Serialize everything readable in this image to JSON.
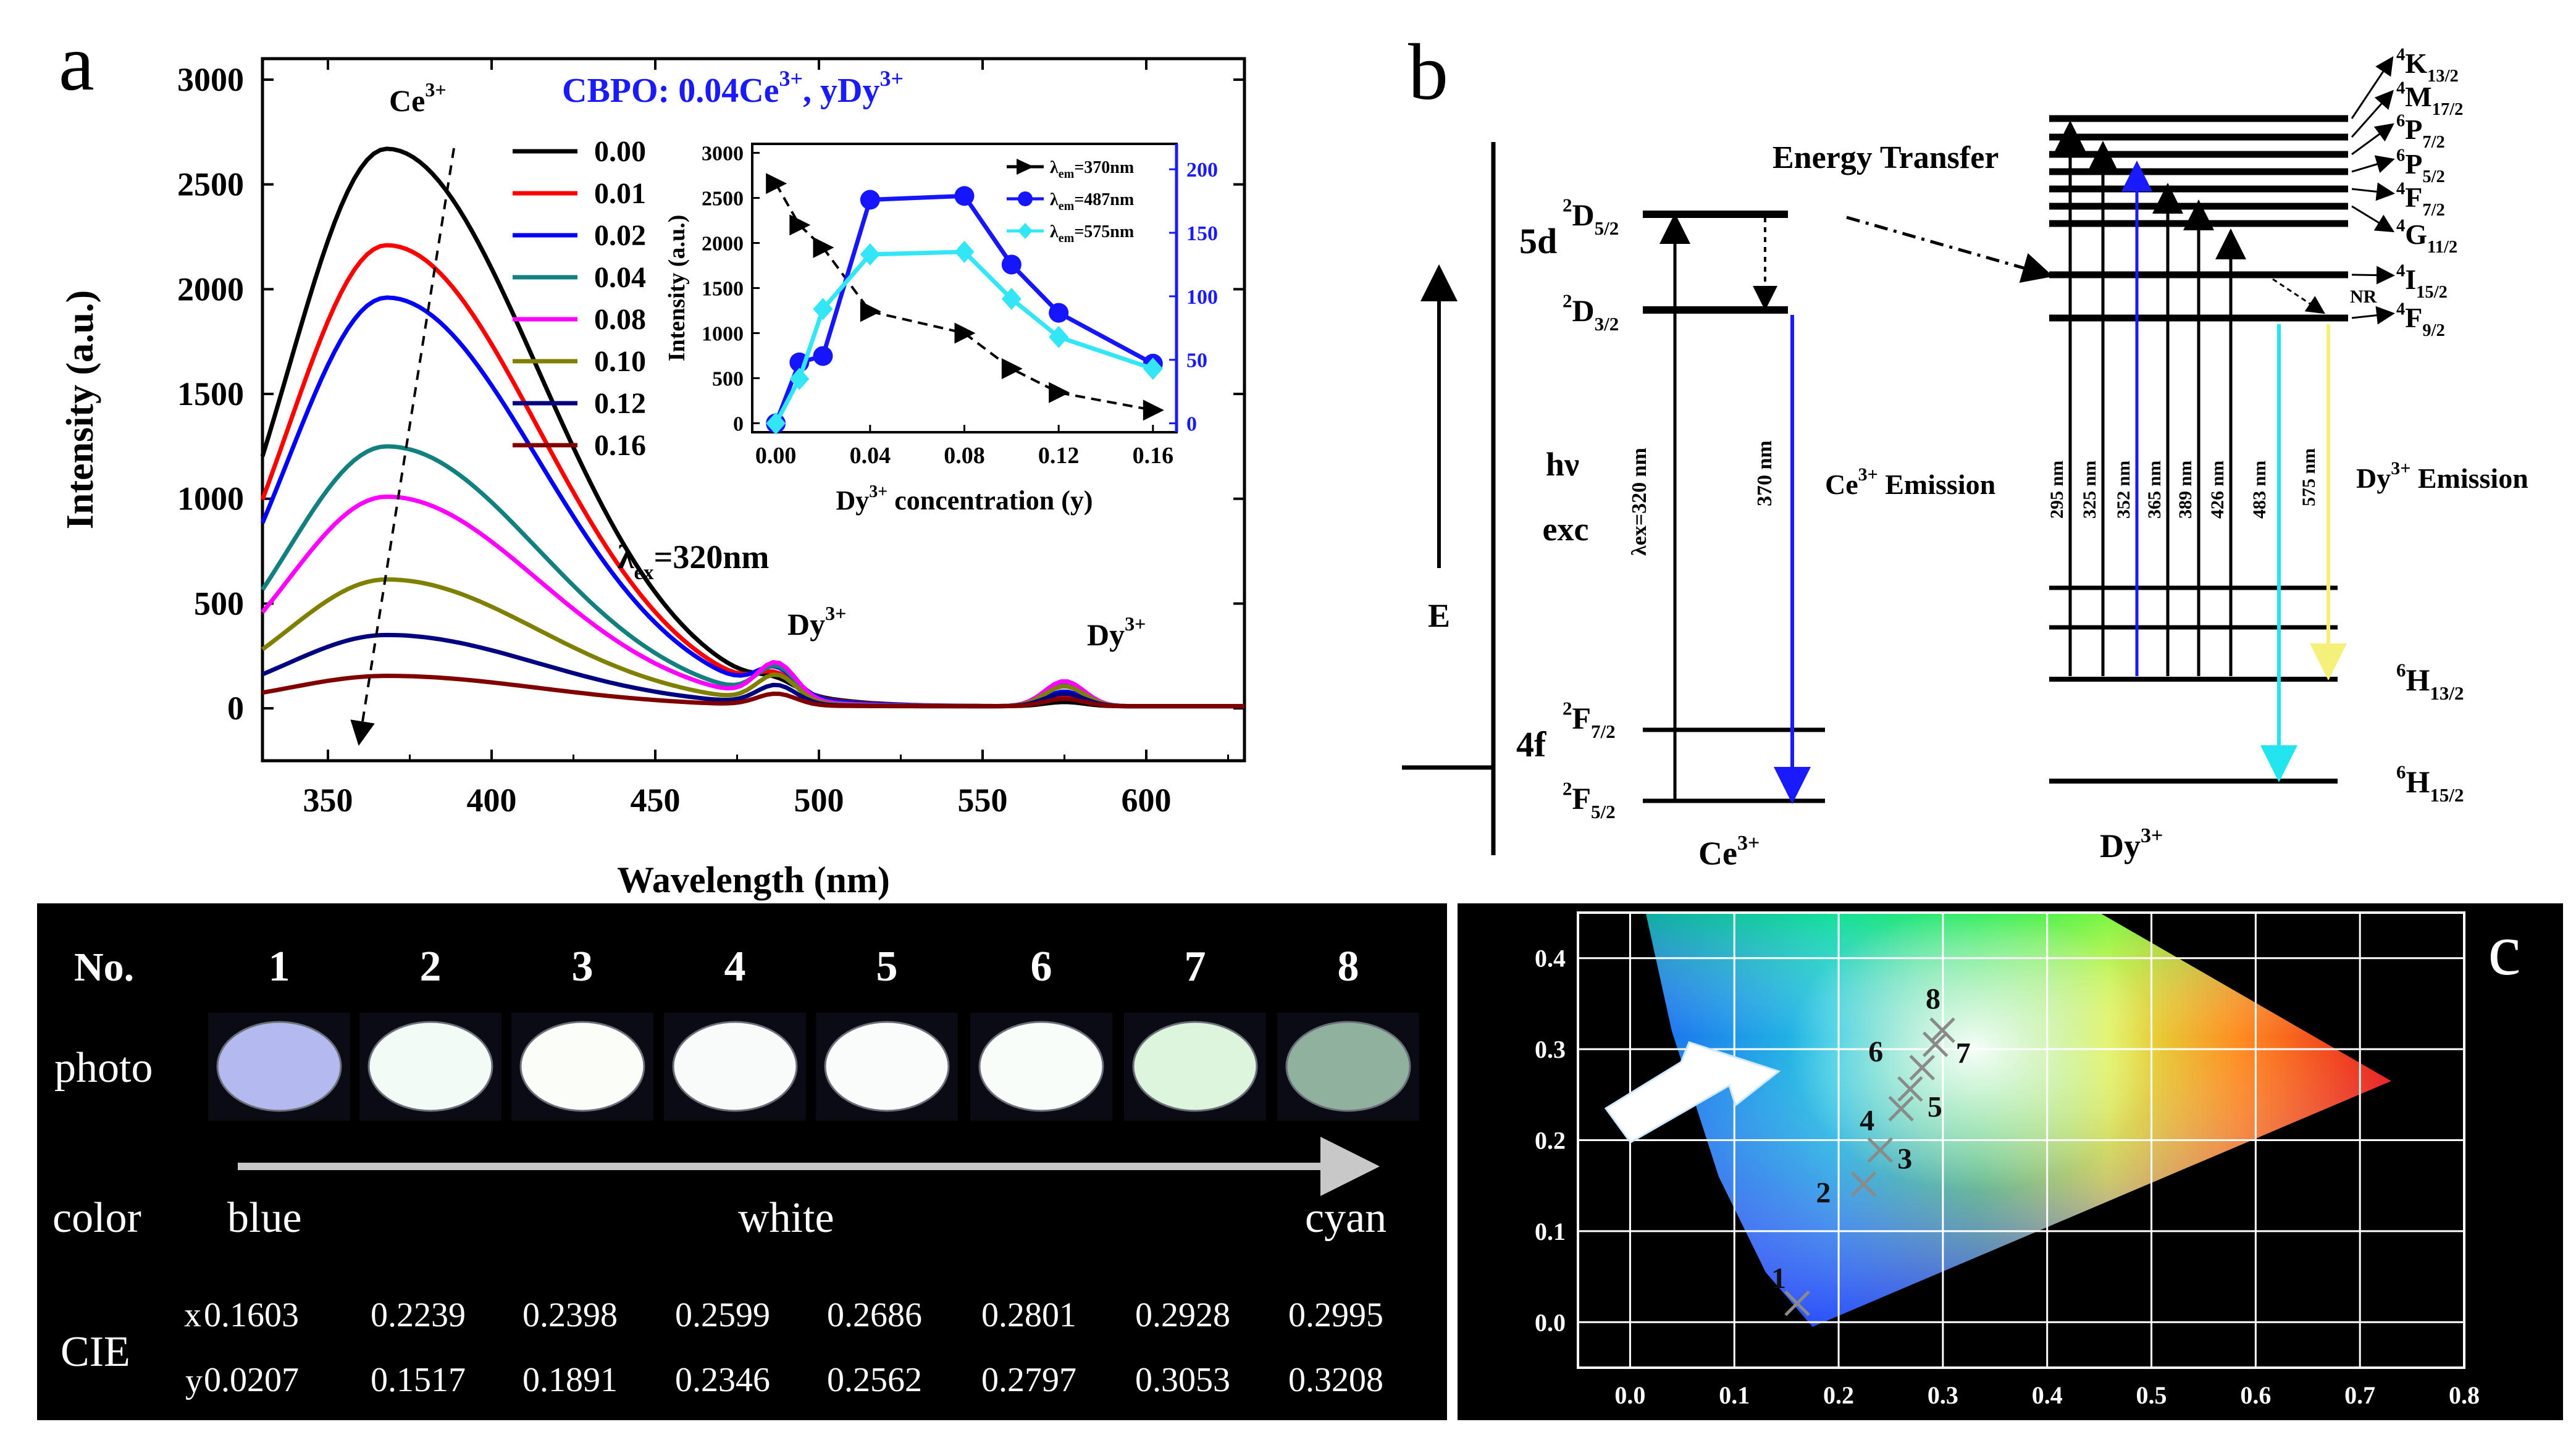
{
  "panel_a": {
    "panel_label": "a",
    "composition": "CBPO: 0.04Ce",
    "composition_sup1": "3+",
    "composition_mid": ", yDy",
    "composition_sup2": "3+",
    "ce_label": "Ce",
    "ce_sup": "3+",
    "dy_label": "Dy",
    "dy_sup": "3+",
    "excitation_text": "λ",
    "excitation_sub": "ex",
    "excitation_value": "=320nm"
  },
  "panel_b": {
    "panel_label": "b",
    "energy_transfer": "Energy Transfer",
    "e_axis": "E",
    "hv": "hν",
    "exc": "exc",
    "level_5d": "5d",
    "level_4f": "4f",
    "ce_levels": [
      {
        "main": "D",
        "pre": "2",
        "sub": "5/2"
      },
      {
        "main": "D",
        "pre": "2",
        "sub": "3/2"
      },
      {
        "main": "F",
        "pre": "2",
        "sub": "7/2"
      },
      {
        "main": "F",
        "pre": "2",
        "sub": "5/2"
      }
    ],
    "lambda_ex_label": "λex=320 nm",
    "ce_emission_wavelength": "370 nm",
    "ce_emission_label": "Ce",
    "ce_emission_sup": "3+",
    "ce_emission_suffix": " Emission",
    "dy_emission_label": "Dy",
    "dy_emission_sup": "3+",
    "dy_emission_suffix": " Emission",
    "ce_ion": "Ce",
    "ce_ion_sup": "3+",
    "dy_ion": "Dy",
    "dy_ion_sup": "3+",
    "nr": "NR",
    "dy_upper_levels": [
      {
        "pre": "4",
        "main": "K",
        "sub": "13/2"
      },
      {
        "pre": "4",
        "main": "M",
        "sub": "17/2"
      },
      {
        "pre": "6",
        "main": "P",
        "sub": "7/2"
      },
      {
        "pre": "6",
        "main": "P",
        "sub": "5/2"
      },
      {
        "pre": "4",
        "main": "F",
        "sub": "7/2"
      },
      {
        "pre": "4",
        "main": "G",
        "sub": "11/2"
      },
      {
        "pre": "4",
        "main": "I",
        "sub": "15/2"
      },
      {
        "pre": "4",
        "main": "F",
        "sub": "9/2"
      }
    ],
    "dy_lower_levels": [
      {
        "pre": "6",
        "main": "H",
        "sub": "13/2"
      },
      {
        "pre": "6",
        "main": "H",
        "sub": "15/2"
      }
    ],
    "dy_excitations": [
      "295 nm",
      "325 nm",
      "352 nm",
      "365 nm",
      "389 nm",
      "426 nm"
    ],
    "dy_emissions": [
      "483 nm",
      "575 nm"
    ],
    "colors": {
      "blue_arrow": "#1a1aff",
      "cyan_arrow": "#22e5f0",
      "yellow_arrow": "#f5f07a"
    }
  },
  "panel_photo": {
    "no_label": "No.",
    "numbers": [
      "1",
      "2",
      "3",
      "4",
      "5",
      "6",
      "7",
      "8"
    ],
    "photo_label": "photo",
    "color_label": "color",
    "color_blue": "blue",
    "color_white": "white",
    "color_cyan": "cyan",
    "cie_label": "CIE",
    "x_label": "x",
    "y_label": "y",
    "x_values": [
      "0.1603",
      "0.2239",
      "0.2398",
      "0.2599",
      "0.2686",
      "0.2801",
      "0.2928",
      "0.2995"
    ],
    "y_values": [
      "0.0207",
      "0.1517",
      "0.1891",
      "0.2346",
      "0.2562",
      "0.2797",
      "0.3053",
      "0.3208"
    ],
    "photo_colors": [
      "#b4b9f0",
      "#f2fbf6",
      "#fbfdf8",
      "#f8fbfa",
      "#f9fcfa",
      "#f9fdf9",
      "#ddf5dc",
      "#8fb19d"
    ]
  },
  "panel_c": {
    "panel_label": "c"
  },
  "chart_data": [
    {
      "type": "line",
      "panel": "a",
      "xlabel": "Wavelength (nm)",
      "ylabel": "Intensity (a.u.)",
      "xlim": [
        330,
        630
      ],
      "ylim": [
        -250,
        3100
      ],
      "xticks": [
        "350",
        "400",
        "450",
        "500",
        "550",
        "600"
      ],
      "yticks": [
        "0",
        "500",
        "1000",
        "1500",
        "2000",
        "2500",
        "3000"
      ],
      "legend_placement": "top-center",
      "series": [
        {
          "name": "0.00",
          "color": "#000000",
          "peak_ce": 2660,
          "peak_487": 45,
          "peak_575": 20
        },
        {
          "name": "0.01",
          "color": "#ff0000",
          "peak_ce": 2200,
          "peak_487": 85,
          "peak_575": 45
        },
        {
          "name": "0.02",
          "color": "#0000ff",
          "peak_ce": 1950,
          "peak_487": 120,
          "peak_575": 70
        },
        {
          "name": "0.04",
          "color": "#138080",
          "peak_ce": 1240,
          "peak_487": 150,
          "peak_575": 100
        },
        {
          "name": "0.08",
          "color": "#ff00ff",
          "peak_ce": 1000,
          "peak_487": 175,
          "peak_575": 120
        },
        {
          "name": "0.10",
          "color": "#808000",
          "peak_ce": 605,
          "peak_487": 130,
          "peak_575": 95
        },
        {
          "name": "0.12",
          "color": "#000080",
          "peak_ce": 340,
          "peak_487": 90,
          "peak_575": 60
        },
        {
          "name": "0.16",
          "color": "#800000",
          "peak_ce": 145,
          "peak_487": 55,
          "peak_575": 35
        }
      ]
    },
    {
      "type": "line",
      "panel": "a-inset",
      "xlabel": "Dy",
      "xlabel_sup": "3+",
      "xlabel_suffix": " concentration (y)",
      "ylabel": "Intensity (a.u.)",
      "xlim": [
        -0.01,
        0.17
      ],
      "ylim_left": [
        -100,
        3100
      ],
      "ylim_right": [
        -7,
        220
      ],
      "xticks": [
        "0.00",
        "0.04",
        "0.08",
        "0.12",
        "0.16"
      ],
      "yticks_left": [
        "0",
        "500",
        "1000",
        "1500",
        "2000",
        "2500",
        "3000"
      ],
      "yticks_right": [
        "0",
        "50",
        "100",
        "150",
        "200"
      ],
      "x": [
        0.0,
        0.01,
        0.02,
        0.04,
        0.08,
        0.1,
        0.12,
        0.16
      ],
      "series": [
        {
          "name": "λem=370nm",
          "legend_main": "λ",
          "legend_sub": "em",
          "legend_value": "=370nm",
          "axis": "left",
          "color": "#000000",
          "marker": "triangle-right",
          "values": [
            2660,
            2200,
            1950,
            1240,
            1000,
            605,
            340,
            145
          ]
        },
        {
          "name": "λem=487nm",
          "legend_main": "λ",
          "legend_sub": "em",
          "legend_value": "=487nm",
          "axis": "right",
          "color": "#1515ff",
          "marker": "circle",
          "values": [
            0,
            48,
            53,
            176,
            179,
            125,
            87,
            47
          ]
        },
        {
          "name": "λem=575nm",
          "legend_main": "λ",
          "legend_sub": "em",
          "legend_value": "=575nm",
          "axis": "right",
          "color": "#33e6f5",
          "marker": "diamond",
          "values": [
            0,
            35,
            90,
            133,
            135,
            98,
            68,
            43
          ]
        }
      ]
    },
    {
      "type": "scatter",
      "panel": "c",
      "xlim": [
        -0.05,
        0.8
      ],
      "ylim": [
        -0.05,
        0.45
      ],
      "xticks": [
        "0.0",
        "0.1",
        "0.2",
        "0.3",
        "0.4",
        "0.5",
        "0.6",
        "0.7",
        "0.8"
      ],
      "yticks": [
        "0.0",
        "0.1",
        "0.2",
        "0.3",
        "0.4"
      ],
      "grid": true,
      "marker": "x",
      "labels": [
        "1",
        "2",
        "3",
        "4",
        "5",
        "6",
        "7",
        "8"
      ],
      "x": [
        0.1603,
        0.2239,
        0.2398,
        0.2599,
        0.2686,
        0.2801,
        0.2928,
        0.2995
      ],
      "y": [
        0.0207,
        0.1517,
        0.1891,
        0.2346,
        0.2562,
        0.2797,
        0.3053,
        0.3208
      ]
    }
  ]
}
